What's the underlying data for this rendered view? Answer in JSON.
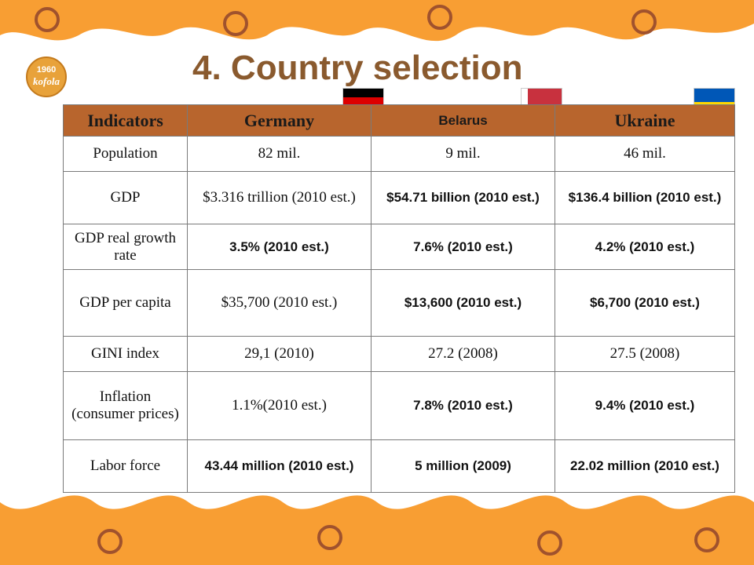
{
  "logo": {
    "year": "1960",
    "brand": "kofola"
  },
  "title": "4. Country selection",
  "table": {
    "header": [
      "Indicators",
      "Germany",
      "Belarus",
      "Ukraine"
    ],
    "rows": [
      [
        "Population",
        "82 mil.",
        "9 mil.",
        "46 mil."
      ],
      [
        "GDP",
        "$3.316 trillion (2010 est.)",
        "$54.71 billion (2010 est.)",
        "$136.4 billion (2010 est.)"
      ],
      [
        "GDP real growth rate",
        "3.5% (2010 est.)",
        "7.6% (2010 est.)",
        "4.2% (2010 est.)"
      ],
      [
        "GDP per capita",
        "$35,700 (2010 est.)",
        "$13,600 (2010 est.)",
        "$6,700 (2010 est.)"
      ],
      [
        "GINI index",
        "29,1 (2010)",
        "27.2 (2008)",
        "27.5 (2008)"
      ],
      [
        "Inflation (consumer prices)",
        "1.1%(2010 est.)",
        "7.8% (2010 est.)",
        "9.4% (2010 est.)"
      ],
      [
        "Labor force",
        "43.44 million (2010 est.)",
        "5 million (2009)",
        "22.02 million (2010 est.)"
      ]
    ]
  }
}
